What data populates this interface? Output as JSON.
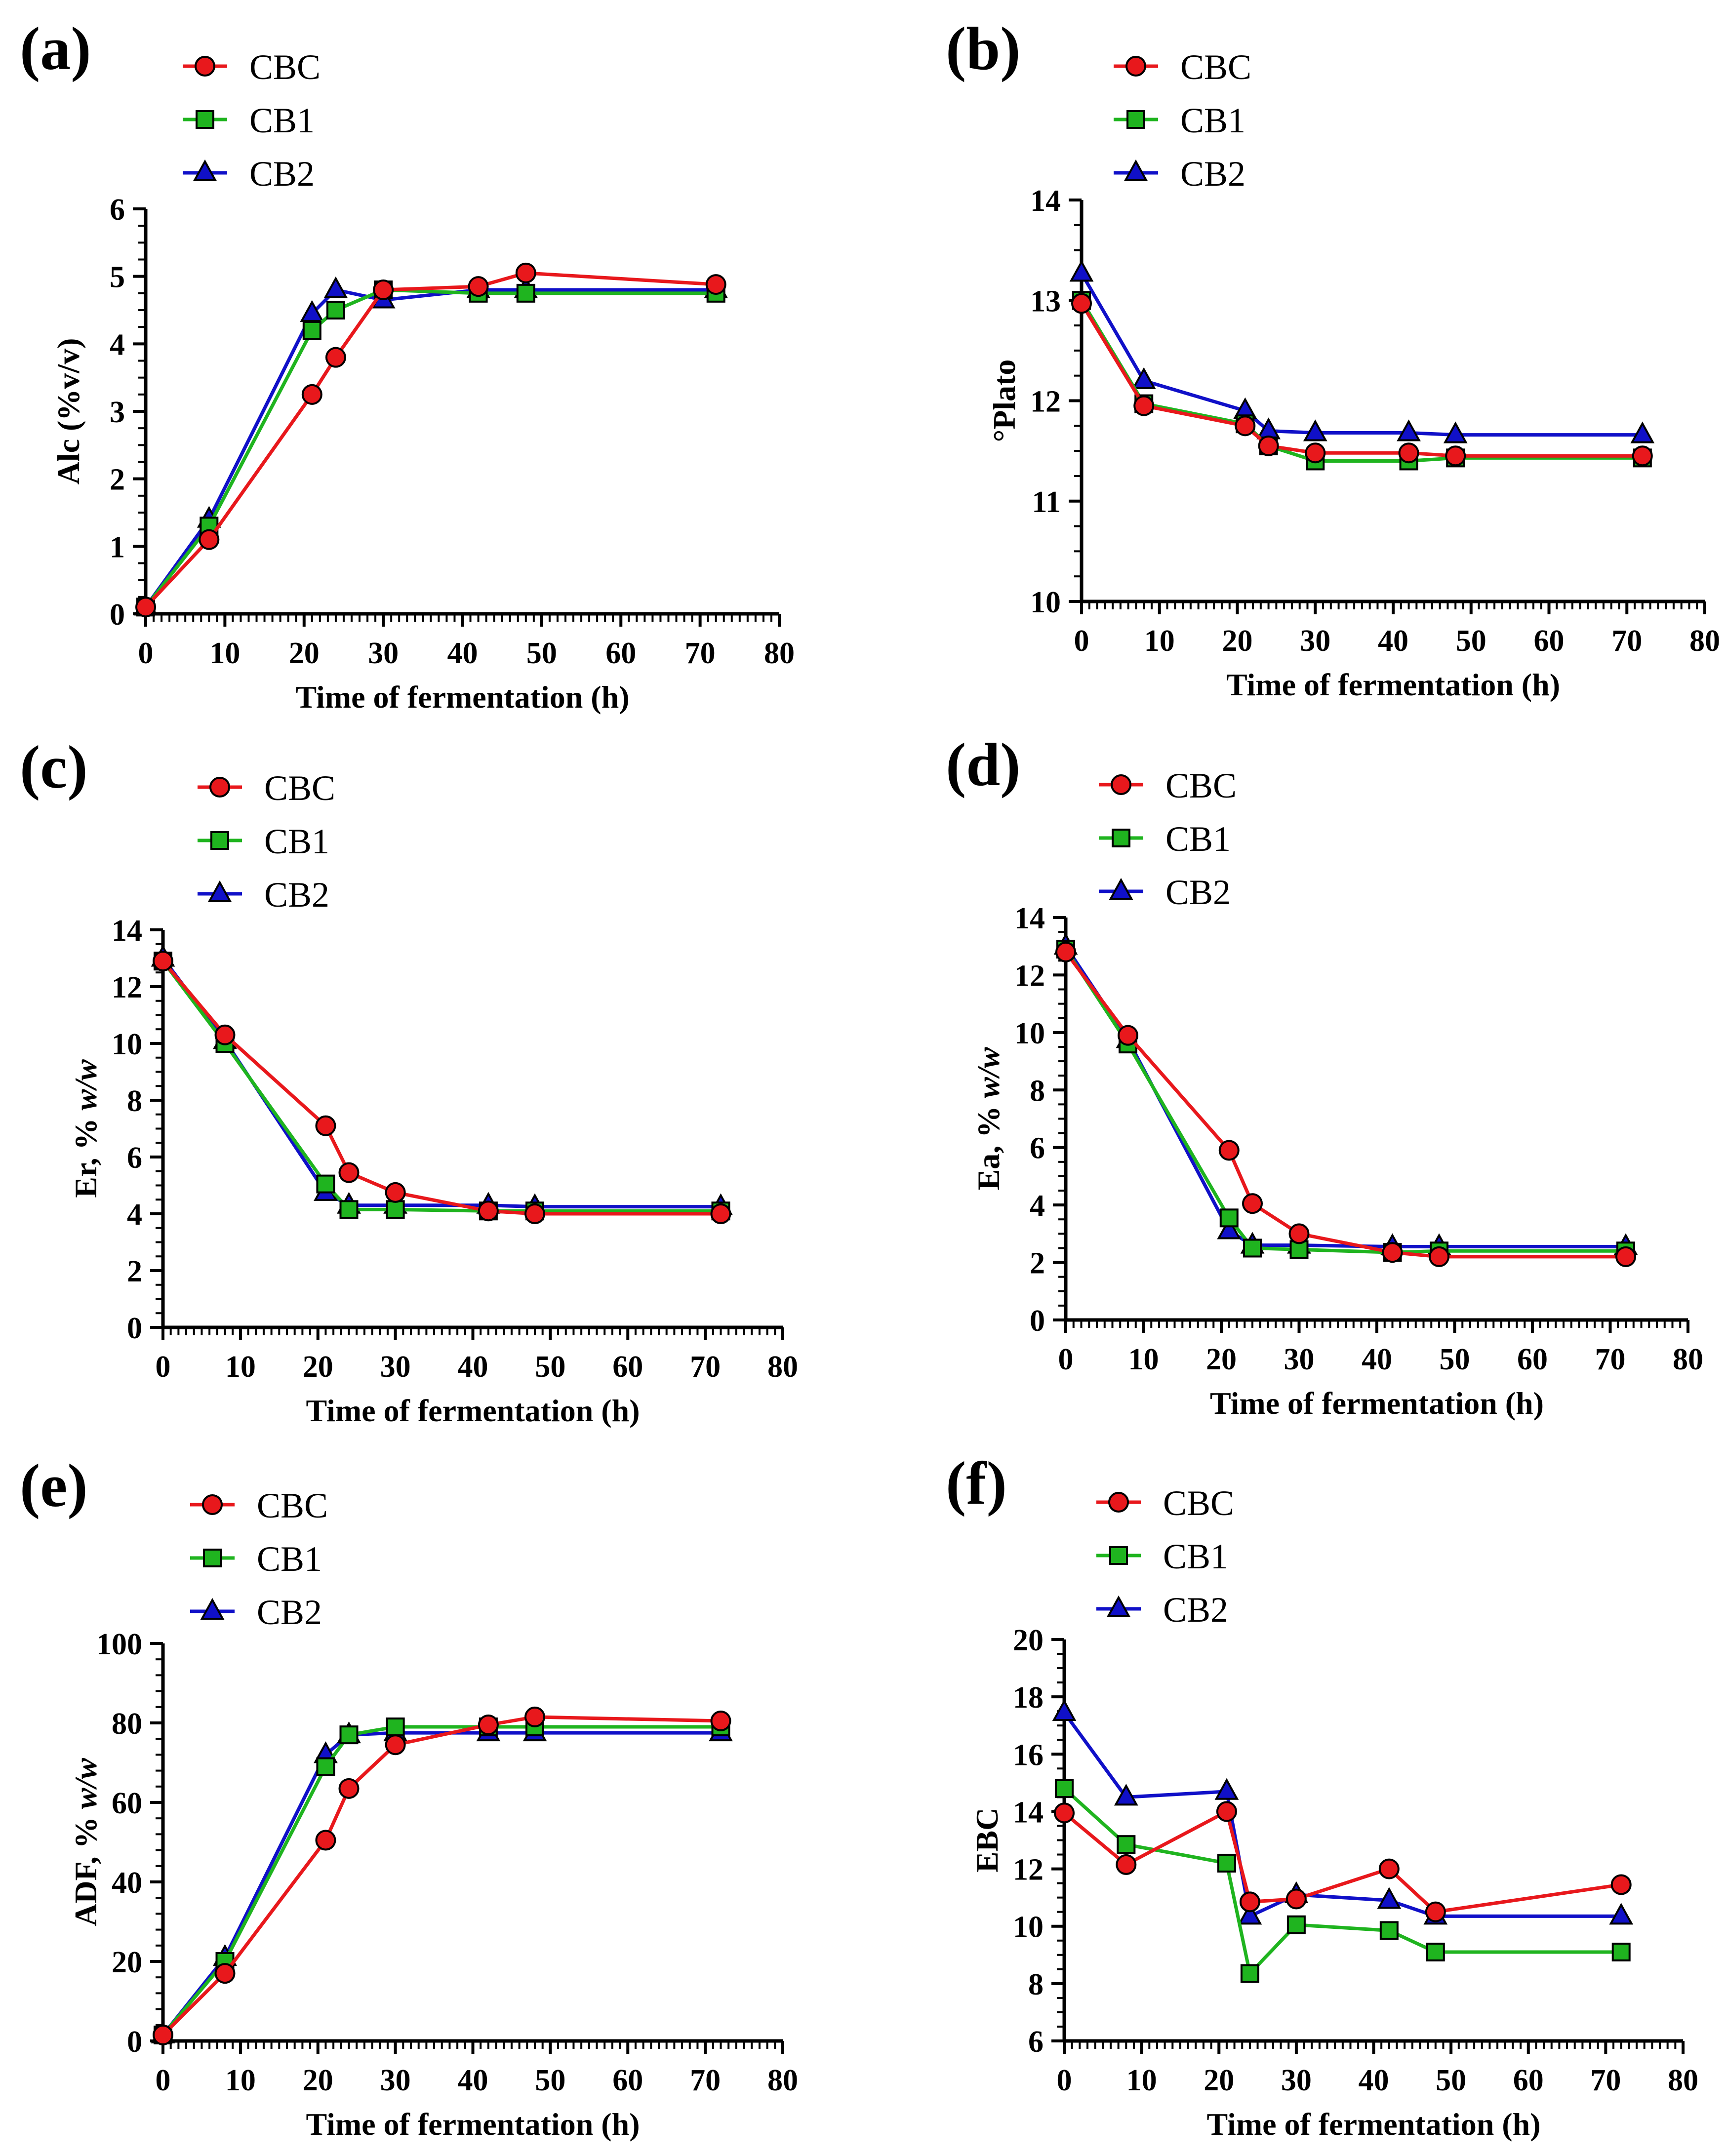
{
  "figure": {
    "series_styles": [
      {
        "name": "CBC",
        "color": "#e8181c",
        "marker": "circle"
      },
      {
        "name": "CB1",
        "color": "#1fb41f",
        "marker": "square"
      },
      {
        "name": "CB2",
        "color": "#1010c8",
        "marker": "triangle"
      }
    ]
  },
  "chart_data": [
    {
      "panel": "(a)",
      "type": "line",
      "xlabel": "Time of fermentation (h)",
      "ylabel": "Alc (%v/v)",
      "ylabel_parts": [
        {
          "t": "Alc (%v/v)",
          "i": false
        }
      ],
      "xlim": [
        0,
        80
      ],
      "ylim": [
        0,
        6
      ],
      "xticks": [
        "0",
        "10",
        "20",
        "30",
        "40",
        "50",
        "60",
        "70",
        "80"
      ],
      "yticks": [
        "0",
        "1",
        "2",
        "3",
        "4",
        "5",
        "6"
      ],
      "x": [
        0,
        8,
        21,
        24,
        30,
        42,
        48,
        72
      ],
      "series": [
        {
          "name": "CBC",
          "values": [
            0.1,
            1.1,
            3.25,
            3.8,
            4.8,
            4.85,
            5.05,
            4.88
          ]
        },
        {
          "name": "CB1",
          "values": [
            0.1,
            1.3,
            4.2,
            4.5,
            4.8,
            4.75,
            4.75,
            4.75
          ]
        },
        {
          "name": "CB2",
          "values": [
            0.1,
            1.4,
            4.45,
            4.8,
            4.65,
            4.8,
            4.8,
            4.8
          ]
        }
      ]
    },
    {
      "panel": "(b)",
      "type": "line",
      "xlabel": "Time of fermentation (h)",
      "ylabel": "°Plato",
      "ylabel_parts": [
        {
          "t": "°Plato",
          "i": false
        }
      ],
      "xlim": [
        0,
        80
      ],
      "ylim": [
        10,
        14
      ],
      "xticks": [
        "0",
        "10",
        "20",
        "30",
        "40",
        "50",
        "60",
        "70",
        "80"
      ],
      "yticks": [
        "10",
        "11",
        "12",
        "13",
        "14"
      ],
      "x": [
        0,
        8,
        21,
        24,
        30,
        42,
        48,
        72
      ],
      "series": [
        {
          "name": "CBC",
          "values": [
            12.97,
            11.95,
            11.75,
            11.55,
            11.48,
            11.48,
            11.45,
            11.45
          ]
        },
        {
          "name": "CB1",
          "values": [
            13.0,
            11.97,
            11.77,
            11.55,
            11.4,
            11.4,
            11.43,
            11.43
          ]
        },
        {
          "name": "CB2",
          "values": [
            13.27,
            12.2,
            11.9,
            11.7,
            11.68,
            11.68,
            11.66,
            11.66
          ]
        }
      ]
    },
    {
      "panel": "(c)",
      "type": "line",
      "xlabel": "Time of fermentation (h)",
      "ylabel": "Er, % w/w",
      "ylabel_parts": [
        {
          "t": "Er, % ",
          "i": false
        },
        {
          "t": "w/w",
          "i": true
        }
      ],
      "xlim": [
        0,
        80
      ],
      "ylim": [
        0,
        14
      ],
      "xticks": [
        "0",
        "10",
        "20",
        "30",
        "40",
        "50",
        "60",
        "70",
        "80"
      ],
      "yticks": [
        "0",
        "2",
        "4",
        "6",
        "8",
        "10",
        "12",
        "14"
      ],
      "x": [
        0,
        8,
        21,
        24,
        30,
        42,
        48,
        72
      ],
      "series": [
        {
          "name": "CBC",
          "values": [
            12.9,
            10.3,
            7.1,
            5.45,
            4.75,
            4.1,
            4.0,
            4.0
          ]
        },
        {
          "name": "CB1",
          "values": [
            12.9,
            10.0,
            5.05,
            4.15,
            4.15,
            4.1,
            4.1,
            4.1
          ]
        },
        {
          "name": "CB2",
          "values": [
            13.0,
            10.1,
            4.75,
            4.3,
            4.3,
            4.3,
            4.25,
            4.25
          ]
        }
      ]
    },
    {
      "panel": "(d)",
      "type": "line",
      "xlabel": "Time of fermentation (h)",
      "ylabel": "Ea, % w/w",
      "ylabel_parts": [
        {
          "t": "Ea, % ",
          "i": false
        },
        {
          "t": "w/w",
          "i": true
        }
      ],
      "xlim": [
        0,
        80
      ],
      "ylim": [
        0,
        14
      ],
      "xticks": [
        "0",
        "10",
        "20",
        "30",
        "40",
        "50",
        "60",
        "70",
        "80"
      ],
      "yticks": [
        "0",
        "2",
        "4",
        "6",
        "8",
        "10",
        "12",
        "14"
      ],
      "x": [
        0,
        8,
        21,
        24,
        30,
        42,
        48,
        72
      ],
      "series": [
        {
          "name": "CBC",
          "values": [
            12.8,
            9.9,
            5.9,
            4.05,
            3.0,
            2.35,
            2.2,
            2.2
          ]
        },
        {
          "name": "CB1",
          "values": [
            12.9,
            9.6,
            3.55,
            2.5,
            2.45,
            2.35,
            2.4,
            2.4
          ]
        },
        {
          "name": "CB2",
          "values": [
            13.0,
            9.75,
            3.1,
            2.6,
            2.6,
            2.55,
            2.55,
            2.55
          ]
        }
      ]
    },
    {
      "panel": "(e)",
      "type": "line",
      "xlabel": "Time of fermentation (h)",
      "ylabel": "ADF, % w/w",
      "ylabel_parts": [
        {
          "t": "ADF, % ",
          "i": false
        },
        {
          "t": "w/w",
          "i": true
        }
      ],
      "xlim": [
        0,
        80
      ],
      "ylim": [
        0,
        100
      ],
      "xticks": [
        "0",
        "10",
        "20",
        "30",
        "40",
        "50",
        "60",
        "70",
        "80"
      ],
      "yticks": [
        "0",
        "20",
        "40",
        "60",
        "80",
        "100"
      ],
      "x": [
        0,
        8,
        21,
        24,
        30,
        42,
        48,
        72
      ],
      "series": [
        {
          "name": "CBC",
          "values": [
            1.5,
            17,
            50.5,
            63.5,
            74.5,
            79.5,
            81.5,
            80.5
          ]
        },
        {
          "name": "CB1",
          "values": [
            1.5,
            20,
            69,
            77,
            79,
            79,
            79,
            79
          ]
        },
        {
          "name": "CB2",
          "values": [
            1.5,
            21,
            72,
            77,
            77.5,
            77.5,
            77.5,
            77.5
          ]
        }
      ]
    },
    {
      "panel": "(f)",
      "type": "line",
      "xlabel": "Time of fermentation (h)",
      "ylabel": "EBC",
      "ylabel_parts": [
        {
          "t": "EBC",
          "i": false
        }
      ],
      "xlim": [
        0,
        80
      ],
      "ylim": [
        6,
        20
      ],
      "xticks": [
        "0",
        "10",
        "20",
        "30",
        "40",
        "50",
        "60",
        "70",
        "80"
      ],
      "yticks": [
        "6",
        "8",
        "10",
        "12",
        "14",
        "16",
        "18",
        "20"
      ],
      "x": [
        0,
        8,
        21,
        24,
        30,
        42,
        48,
        72
      ],
      "series": [
        {
          "name": "CBC",
          "values": [
            13.95,
            12.15,
            14.0,
            10.85,
            10.95,
            12.0,
            10.5,
            11.45
          ]
        },
        {
          "name": "CB1",
          "values": [
            14.8,
            12.85,
            12.2,
            8.35,
            10.05,
            9.85,
            9.1,
            9.1
          ]
        },
        {
          "name": "CB2",
          "values": [
            17.45,
            14.5,
            14.7,
            10.35,
            11.1,
            10.9,
            10.35,
            10.35
          ]
        }
      ]
    }
  ]
}
